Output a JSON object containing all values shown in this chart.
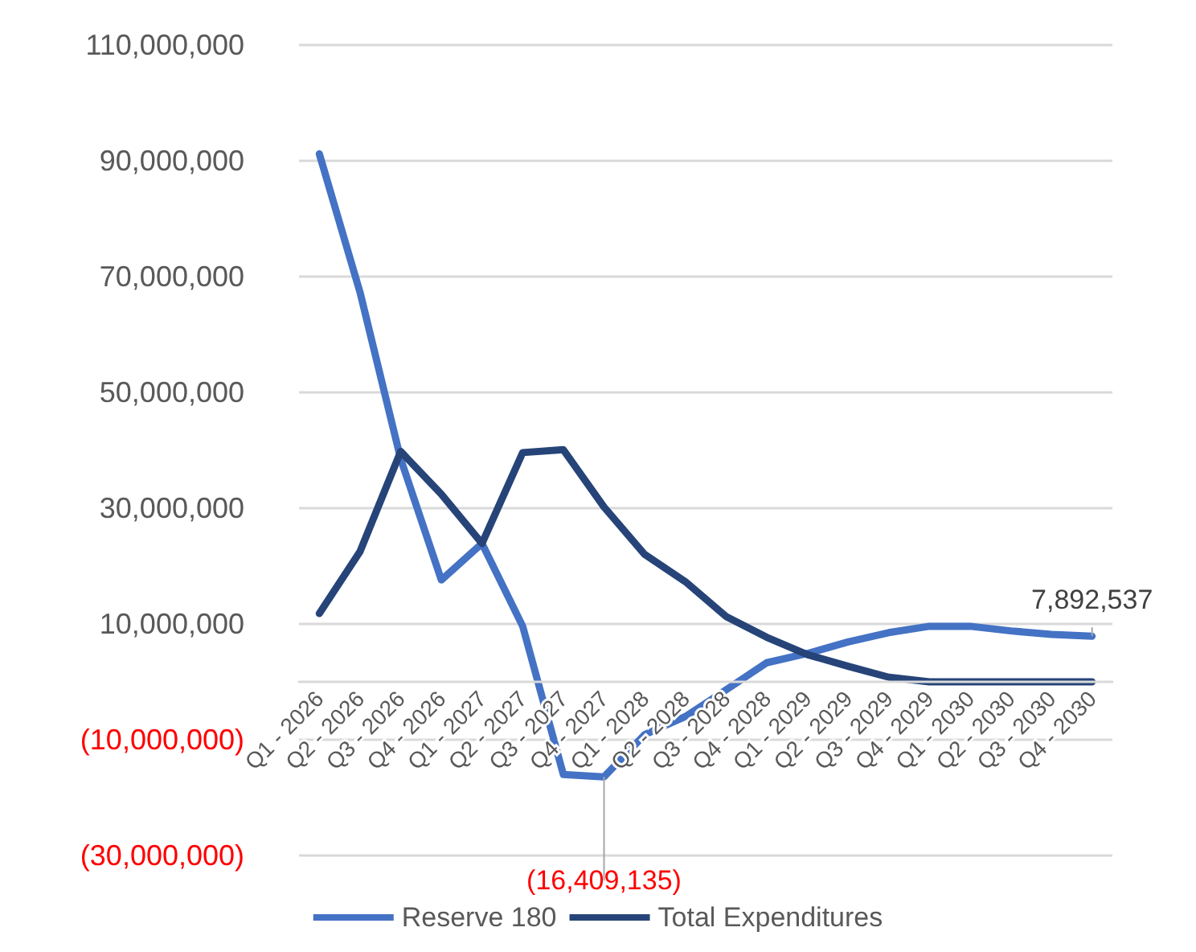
{
  "chart_data": {
    "type": "line",
    "categories": [
      "Q1 - 2026",
      "Q2 - 2026",
      "Q3 - 2026",
      "Q4 - 2026",
      "Q1 - 2027",
      "Q2 - 2027",
      "Q3 - 2027",
      "Q4 - 2027",
      "Q1 - 2028",
      "Q2 - 2028",
      "Q3 - 2028",
      "Q4 - 2028",
      "Q1 - 2029",
      "Q2 - 2029",
      "Q3 - 2029",
      "Q4 - 2029",
      "Q1 - 2030",
      "Q2 - 2030",
      "Q3 - 2030",
      "Q4 - 2030"
    ],
    "series": [
      {
        "name": "Reserve 180",
        "color": "#4472c4",
        "values": [
          91200000,
          67300000,
          38500000,
          17600000,
          23900000,
          9600000,
          -16000000,
          -16409135,
          -9100000,
          -6000000,
          -1400000,
          3300000,
          4900000,
          6900000,
          8500000,
          9600000,
          9600000,
          8800000,
          8200000,
          7892537
        ],
        "value_labels": [
          null,
          null,
          null,
          null,
          null,
          null,
          null,
          "(16,409,135)",
          null,
          null,
          null,
          null,
          null,
          null,
          null,
          null,
          null,
          null,
          null,
          "7,892,537"
        ]
      },
      {
        "name": "Total Expenditures",
        "color": "#264478",
        "values": [
          11800000,
          22500000,
          39800000,
          32400000,
          23900000,
          39600000,
          40100000,
          30200000,
          22000000,
          17300000,
          11300000,
          7700000,
          4700000,
          2700000,
          800000,
          0,
          0,
          0,
          0,
          0
        ]
      }
    ],
    "ylim": [
      -30000000,
      110000000
    ],
    "yticks": [
      {
        "value": -30000000,
        "label": "(30,000,000)"
      },
      {
        "value": -10000000,
        "label": "(10,000,000)"
      },
      {
        "value": 10000000,
        "label": "10,000,000"
      },
      {
        "value": 30000000,
        "label": "30,000,000"
      },
      {
        "value": 50000000,
        "label": "50,000,000"
      },
      {
        "value": 70000000,
        "label": "70,000,000"
      },
      {
        "value": 90000000,
        "label": "90,000,000"
      },
      {
        "value": 110000000,
        "label": "110,000,000"
      }
    ],
    "grid": "y",
    "legend": "bottom",
    "marker": "none",
    "line_style": "solid"
  }
}
